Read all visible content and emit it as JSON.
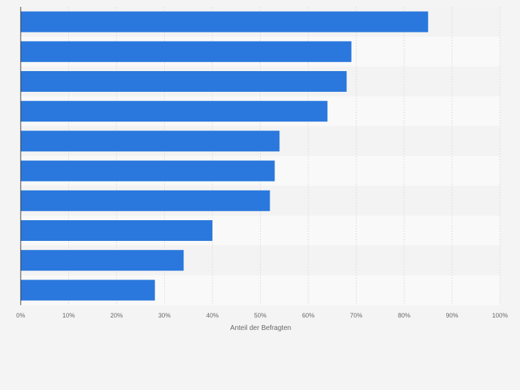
{
  "chart_data": {
    "type": "bar",
    "orientation": "horizontal",
    "categories": [
      "",
      "",
      "",
      "",
      "",
      "",
      "",
      "",
      "",
      ""
    ],
    "values": [
      85,
      69,
      68,
      64,
      54,
      53,
      52,
      40,
      34,
      28
    ],
    "xlabel": "Anteil der Befragten",
    "ylabel": "",
    "xlim": [
      0,
      100
    ],
    "x_ticks": [
      "0%",
      "10%",
      "20%",
      "30%",
      "40%",
      "50%",
      "60%",
      "70%",
      "80%",
      "90%",
      "100%"
    ],
    "grid": true,
    "legend": "none",
    "colors": {
      "bar": "#2a78dd",
      "row_band_a": "#f3f3f3",
      "row_band_b": "#f9f9f9",
      "gridline": "#dcdcdc",
      "axis": "#3a3a3a",
      "tick_text": "#666666",
      "background": "#f4f4f4"
    }
  }
}
